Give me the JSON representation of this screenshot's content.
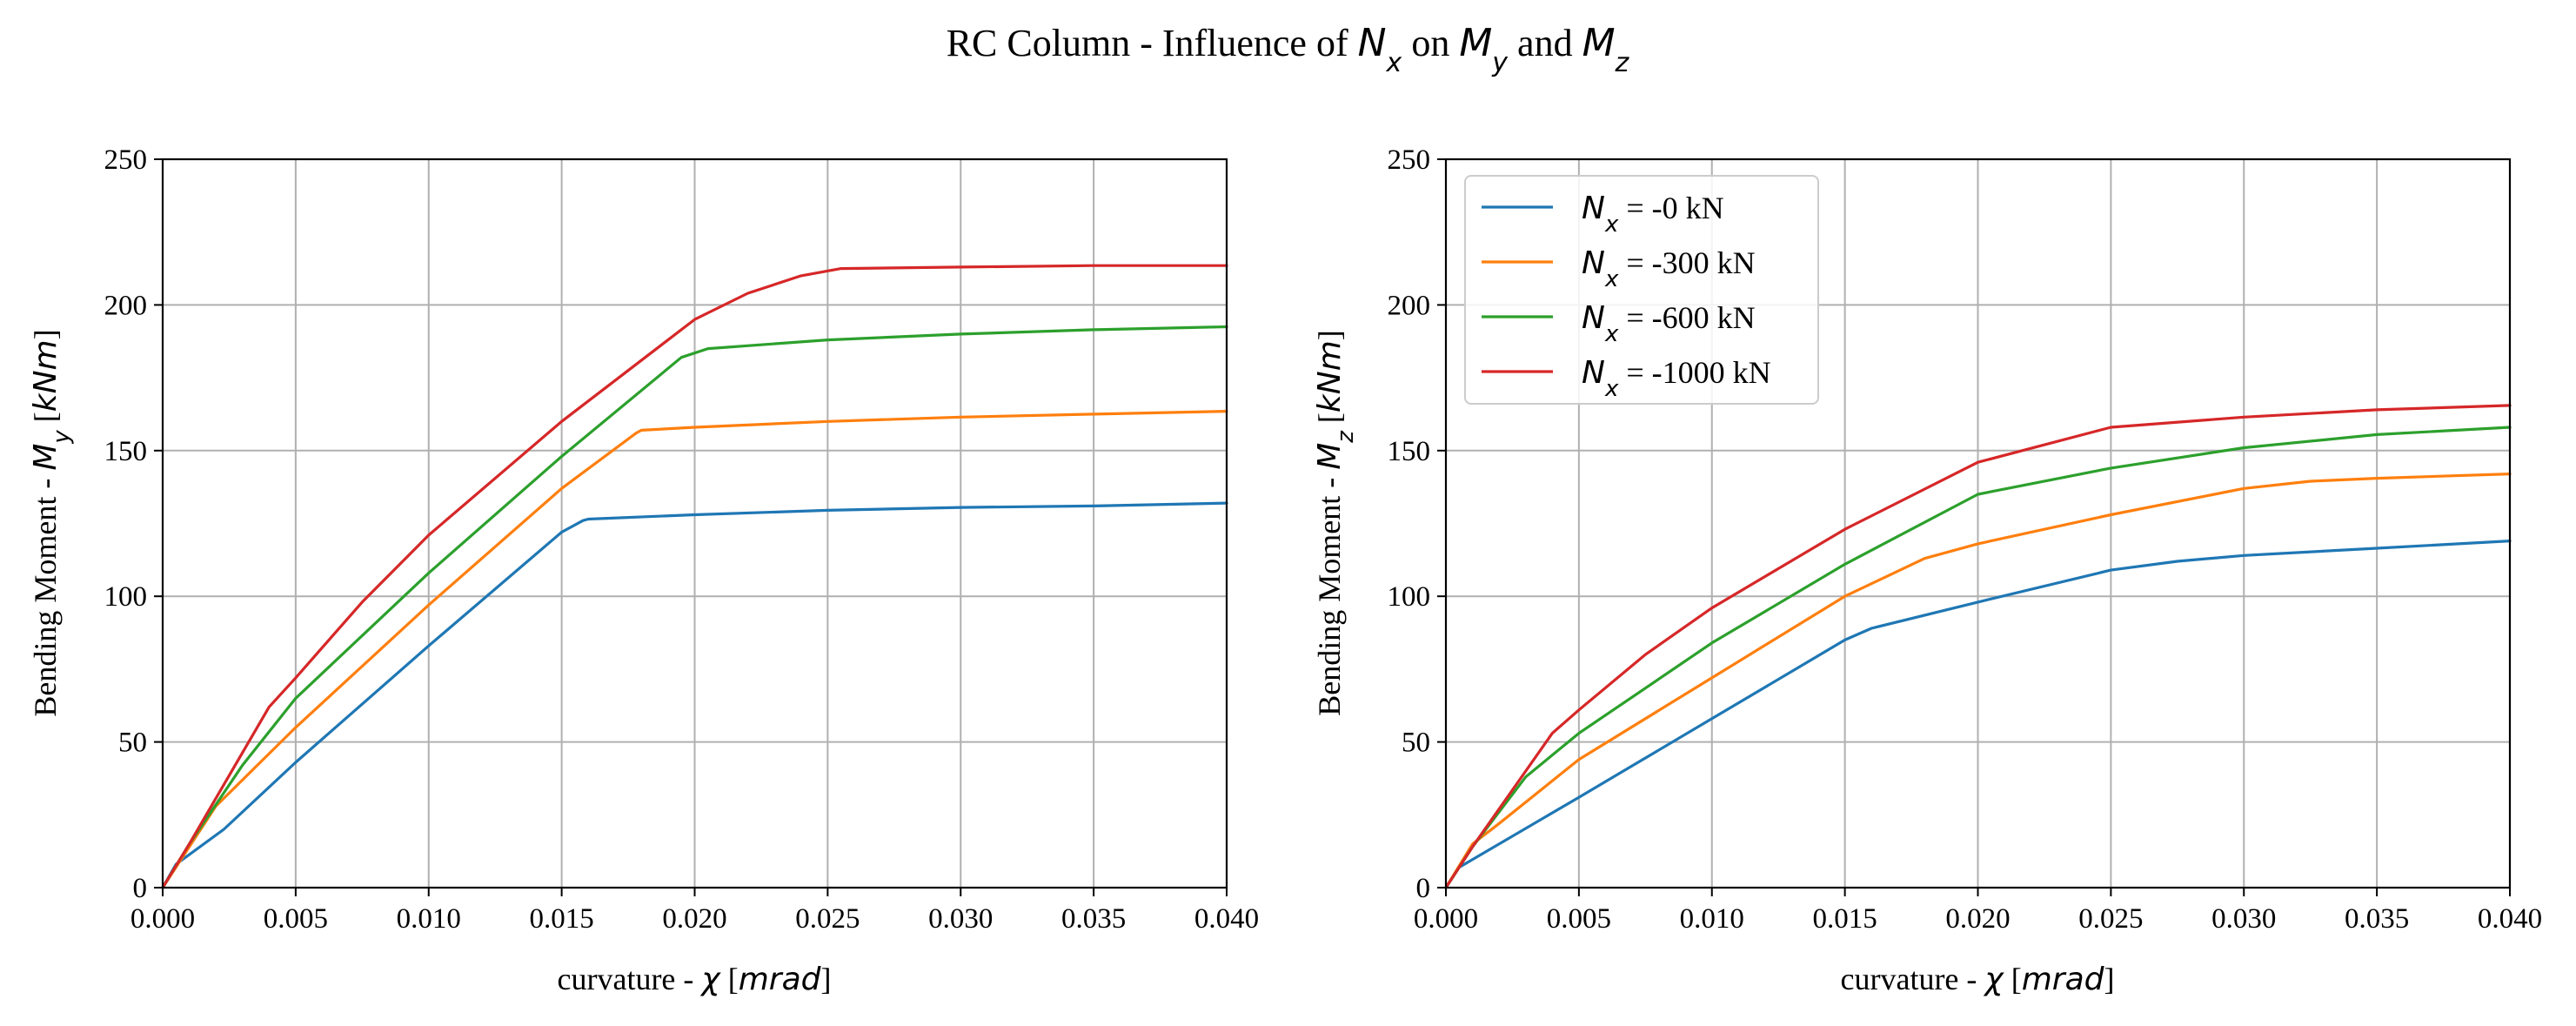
{
  "figure": {
    "title_parts": [
      "RC Column - Influence of ",
      "N",
      "x",
      " on ",
      "M",
      "y",
      " and ",
      "M",
      "z"
    ]
  },
  "colors": {
    "Nx_0": "#1f77b4",
    "Nx_300": "#ff7f0e",
    "Nx_600": "#2ca02c",
    "Nx_1000": "#d62728",
    "grid": "#b0b0b0",
    "axes": "#000000"
  },
  "legend": {
    "placement": "upper-left",
    "panel": 1,
    "entries": [
      {
        "math": "N",
        "sub": "x",
        "text": " = -0 kN",
        "color": "#1f77b4"
      },
      {
        "math": "N",
        "sub": "x",
        "text": " = -300 kN",
        "color": "#ff7f0e"
      },
      {
        "math": "N",
        "sub": "x",
        "text": " = -600 kN",
        "color": "#2ca02c"
      },
      {
        "math": "N",
        "sub": "x",
        "text": " = -1000 kN",
        "color": "#d62728"
      }
    ]
  },
  "chart_data": [
    {
      "type": "line",
      "xlabel": {
        "text": "curvature - ",
        "math": "χ",
        "unit_parts": [
          "[",
          "mrad",
          "]"
        ]
      },
      "ylabel": {
        "text": "Bending Moment - ",
        "math": "M",
        "sub": "y",
        "unit_parts": [
          "[",
          "kNm",
          "]"
        ]
      },
      "xlim": [
        0,
        0.04
      ],
      "ylim": [
        0,
        250
      ],
      "xticks": [
        "0.000",
        "0.005",
        "0.010",
        "0.015",
        "0.020",
        "0.025",
        "0.030",
        "0.035",
        "0.040"
      ],
      "yticks": [
        "0",
        "50",
        "100",
        "150",
        "200",
        "250"
      ],
      "grid": true,
      "series": [
        {
          "name": "Nx = -0 kN",
          "color": "#1f77b4",
          "x": [
            0,
            0.0005,
            0.0023,
            0.005,
            0.01,
            0.015,
            0.0158,
            0.016,
            0.02,
            0.025,
            0.03,
            0.035,
            0.04
          ],
          "y": [
            0,
            8,
            20,
            43,
            83,
            122,
            126,
            126.5,
            128,
            129.5,
            130.5,
            131,
            132
          ]
        },
        {
          "name": "Nx = -300 kN",
          "color": "#ff7f0e",
          "x": [
            0,
            0.001,
            0.002,
            0.005,
            0.01,
            0.015,
            0.0178,
            0.018,
            0.02,
            0.025,
            0.03,
            0.035,
            0.04
          ],
          "y": [
            0,
            14,
            28,
            55,
            97,
            137,
            156,
            157,
            158,
            160,
            161.5,
            162.5,
            163.5
          ]
        },
        {
          "name": "Nx = -600 kN",
          "color": "#2ca02c",
          "x": [
            0,
            0.001,
            0.003,
            0.005,
            0.01,
            0.015,
            0.0195,
            0.0205,
            0.025,
            0.03,
            0.035,
            0.04
          ],
          "y": [
            0,
            15,
            42,
            65,
            108,
            148,
            182,
            185,
            188,
            190,
            191.5,
            192.5
          ]
        },
        {
          "name": "Nx = -1000 kN",
          "color": "#d62728",
          "x": [
            0,
            0.001,
            0.004,
            0.005,
            0.0075,
            0.01,
            0.015,
            0.02,
            0.022,
            0.024,
            0.0255,
            0.03,
            0.035,
            0.04
          ],
          "y": [
            0,
            15,
            62,
            72,
            98,
            121,
            160,
            195,
            204,
            210,
            212.5,
            213,
            213.5,
            213.5
          ]
        }
      ]
    },
    {
      "type": "line",
      "xlabel": {
        "text": "curvature - ",
        "math": "χ",
        "unit_parts": [
          "[",
          "mrad",
          "]"
        ]
      },
      "ylabel": {
        "text": "Bending Moment - ",
        "math": "M",
        "sub": "z",
        "unit_parts": [
          "[",
          "kNm",
          "]"
        ]
      },
      "xlim": [
        0,
        0.04
      ],
      "ylim": [
        0,
        250
      ],
      "xticks": [
        "0.000",
        "0.005",
        "0.010",
        "0.015",
        "0.020",
        "0.025",
        "0.030",
        "0.035",
        "0.040"
      ],
      "yticks": [
        "0",
        "50",
        "100",
        "150",
        "200",
        "250"
      ],
      "grid": true,
      "series": [
        {
          "name": "Nx = -0 kN",
          "color": "#1f77b4",
          "x": [
            0,
            0.0005,
            0.005,
            0.01,
            0.015,
            0.016,
            0.02,
            0.025,
            0.0275,
            0.03,
            0.035,
            0.04
          ],
          "y": [
            0,
            7,
            31,
            58,
            85,
            89,
            98,
            109,
            112,
            114,
            116.5,
            119
          ]
        },
        {
          "name": "Nx = -300 kN",
          "color": "#ff7f0e",
          "x": [
            0,
            0.001,
            0.002,
            0.005,
            0.01,
            0.015,
            0.018,
            0.02,
            0.025,
            0.03,
            0.0325,
            0.035,
            0.04
          ],
          "y": [
            0,
            15,
            22,
            44,
            72,
            100,
            113,
            118,
            128,
            137,
            139.5,
            140.5,
            142
          ]
        },
        {
          "name": "Nx = -600 kN",
          "color": "#2ca02c",
          "x": [
            0,
            0.001,
            0.003,
            0.005,
            0.01,
            0.015,
            0.02,
            0.025,
            0.03,
            0.035,
            0.04
          ],
          "y": [
            0,
            14,
            38,
            53,
            84,
            111,
            135,
            144,
            151,
            155.5,
            158
          ]
        },
        {
          "name": "Nx = -1000 kN",
          "color": "#d62728",
          "x": [
            0,
            0.001,
            0.004,
            0.005,
            0.0075,
            0.01,
            0.015,
            0.02,
            0.025,
            0.03,
            0.035,
            0.04
          ],
          "y": [
            0,
            14,
            53,
            61,
            80,
            96,
            123,
            146,
            158,
            161.5,
            164,
            165.5
          ]
        }
      ]
    }
  ]
}
